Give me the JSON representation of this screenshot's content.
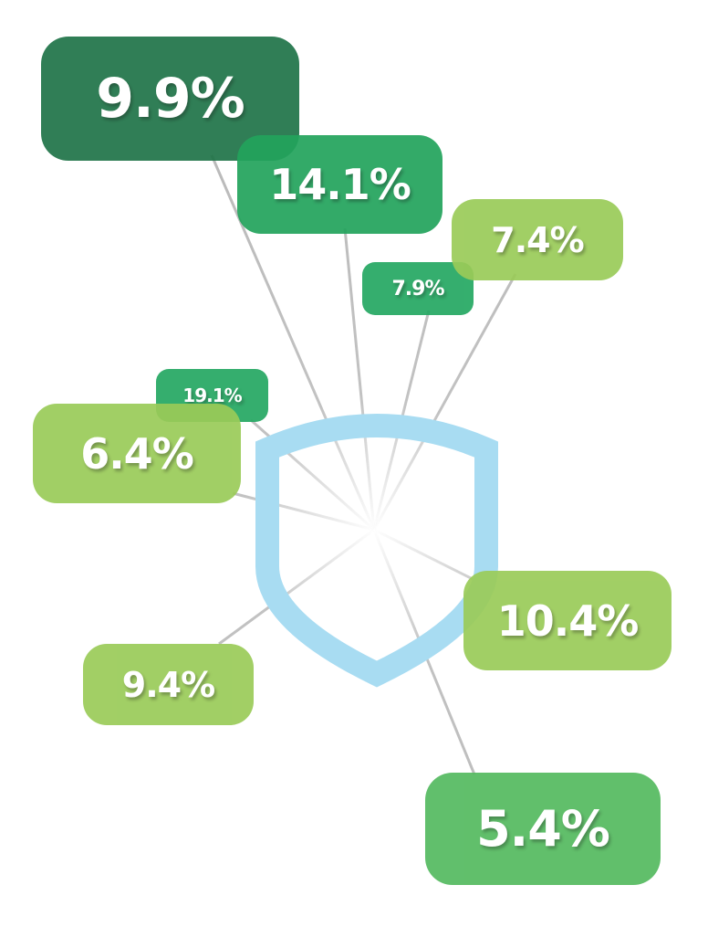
{
  "labels": [
    "9.9%",
    "14.1%",
    "7.4%",
    "7.9%",
    "19.1%",
    "6.4%",
    "10.4%",
    "9.4%",
    "5.4%"
  ]
}
